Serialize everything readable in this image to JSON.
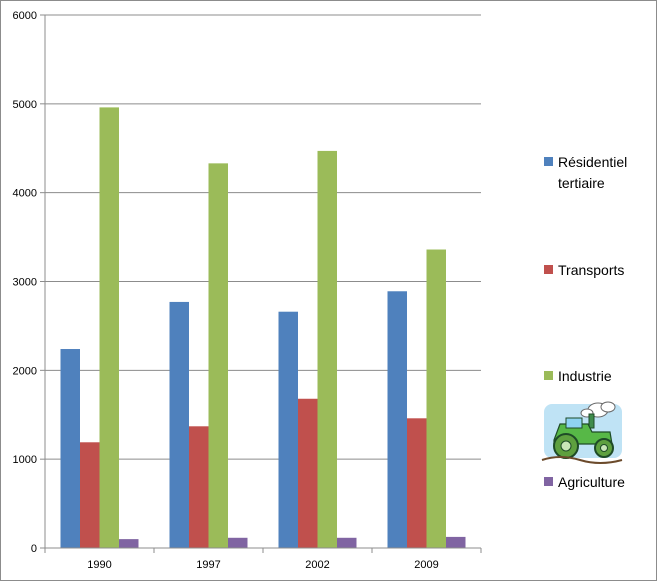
{
  "chart_data": {
    "type": "bar",
    "title": "",
    "xlabel": "",
    "ylabel": "",
    "categories": [
      "1990",
      "1997",
      "2002",
      "2009"
    ],
    "ylim": [
      0,
      6000
    ],
    "yticks": [
      "0",
      "1000",
      "2000",
      "3000",
      "4000",
      "5000",
      "6000"
    ],
    "grid": true,
    "legend_position": "right",
    "series": [
      {
        "name": "Résidentiel tertiaire",
        "color": "#4F81BD",
        "values": [
          2240,
          2770,
          2660,
          2890
        ]
      },
      {
        "name": "Transports",
        "color": "#C0504D",
        "values": [
          1190,
          1370,
          1680,
          1460
        ]
      },
      {
        "name": "Industrie",
        "color": "#9BBB59",
        "values": [
          4960,
          4330,
          4470,
          3360
        ]
      },
      {
        "name": "Agriculture",
        "color": "#8064A2",
        "values": [
          100,
          115,
          115,
          125
        ]
      }
    ]
  },
  "legend": {
    "items": [
      {
        "lines": [
          "Résidentiel",
          "tertiaire"
        ]
      },
      {
        "lines": [
          "Transports"
        ]
      },
      {
        "lines": [
          "Industrie"
        ]
      },
      {
        "lines": [
          "Agriculture"
        ]
      }
    ],
    "tractor_icon": "tractor-clipart-icon"
  }
}
